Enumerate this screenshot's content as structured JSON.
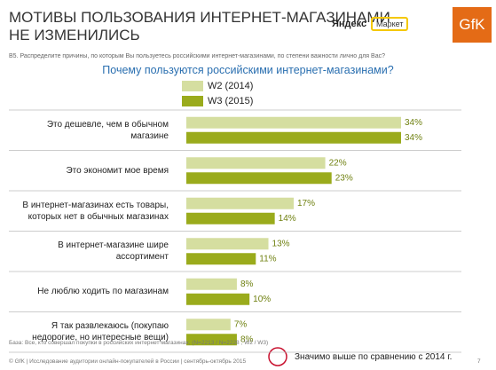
{
  "header": {
    "title": "МОТИВЫ ПОЛЬЗОВАНИЯ ИНТЕРНЕТ-МАГАЗИНАМИ\nНЕ ИЗМЕНИЛИСЬ",
    "logo_yandex": "Яндекс",
    "logo_market": "Маркет",
    "logo_gfk": "GfK",
    "question": "В5. Распределите причины, по которым Вы пользуетесь российскими интернет-магазинами, по степени важности лично для Вас?"
  },
  "chart_data": {
    "type": "hbar",
    "title": "Почему пользуются российскими интернет-магазинами?",
    "categories": [
      "Это дешевле, чем в обычном\nмагазине",
      "Это экономит мое время",
      "В интернет-магазинах есть товары,\nкоторых нет в обычных магазинах",
      "В интернет-магазине шире\nассортимент",
      "Не люблю ходить по магазинам",
      "Я так развлекаюсь (покупаю\nнедорогие, но интересные вещи)"
    ],
    "series": [
      {
        "name": "W2 (2014)",
        "color": "#d5dea0",
        "values": [
          34,
          22,
          17,
          13,
          8,
          7
        ],
        "value_labels": [
          "34%",
          "22%",
          "17%",
          "13%",
          "8%",
          "7%"
        ]
      },
      {
        "name": "W3 (2015)",
        "color": "#9aab1c",
        "values": [
          34,
          23,
          14,
          11,
          10,
          8
        ],
        "value_labels": [
          "34%",
          "23%",
          "14%",
          "11%",
          "10%",
          "8%"
        ]
      }
    ]
  },
  "footer": {
    "base": "База: Все, кто совершал покупки в российских интернет-магазинах, (N=2213 / N=2228 ; W2 / W3)",
    "copyright": "© GfK | Исследование аудитории онлайн-покупателей в России | сентябрь-октябрь 2015",
    "significance": "Значимо выше по сравнению с 2014 г.",
    "page": "7"
  }
}
